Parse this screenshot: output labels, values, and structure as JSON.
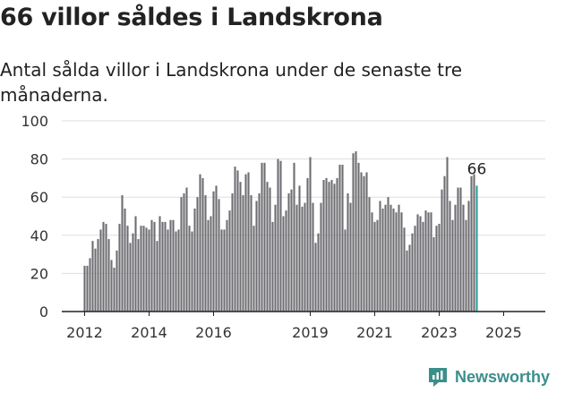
{
  "title": "66 villor såldes i Landskrona",
  "subtitle": "Antal sålda villor i Landskrona under de senaste tre månaderna.",
  "brand": "Newsworthy",
  "colors": {
    "bar": "#6e6e72",
    "highlight": "#2a9c9a",
    "grid": "#dddddd",
    "axis": "#222222",
    "brand": "#3a8f8b"
  },
  "chart_data": {
    "type": "bar",
    "ylim": [
      0,
      100
    ],
    "yticks": [
      0,
      20,
      40,
      60,
      80,
      100
    ],
    "xticks": [
      {
        "label": "2012",
        "date": "2012-01"
      },
      {
        "label": "2014",
        "date": "2014-01"
      },
      {
        "label": "2016",
        "date": "2016-01"
      },
      {
        "label": "2019",
        "date": "2019-01"
      },
      {
        "label": "2021",
        "date": "2021-01"
      },
      {
        "label": "2023",
        "date": "2023-01"
      },
      {
        "label": "2025",
        "date": "2025-01"
      }
    ],
    "grid": true,
    "start": "2012-01",
    "highlight_label": "66",
    "values": [
      24,
      24,
      28,
      37,
      33,
      38,
      43,
      47,
      46,
      38,
      27,
      23,
      32,
      46,
      61,
      54,
      45,
      36,
      41,
      50,
      38,
      45,
      45,
      44,
      43,
      48,
      47,
      37,
      50,
      47,
      47,
      43,
      48,
      48,
      42,
      43,
      60,
      62,
      65,
      45,
      42,
      54,
      60,
      72,
      70,
      61,
      48,
      50,
      63,
      66,
      59,
      43,
      43,
      48,
      53,
      62,
      76,
      74,
      68,
      61,
      72,
      73,
      61,
      45,
      58,
      62,
      78,
      78,
      68,
      65,
      47,
      56,
      80,
      79,
      50,
      53,
      62,
      64,
      78,
      56,
      66,
      55,
      57,
      70,
      81,
      57,
      36,
      41,
      57,
      69,
      70,
      68,
      69,
      67,
      70,
      77,
      77,
      43,
      62,
      57,
      83,
      84,
      78,
      73,
      71,
      73,
      60,
      52,
      47,
      48,
      58,
      54,
      56,
      60,
      56,
      54,
      52,
      56,
      52,
      44,
      32,
      35,
      41,
      45,
      51,
      50,
      47,
      53,
      52,
      52,
      39,
      45,
      46,
      64,
      71,
      81,
      58,
      48,
      56,
      65,
      65,
      56,
      48,
      58,
      71,
      72,
      66
    ]
  }
}
